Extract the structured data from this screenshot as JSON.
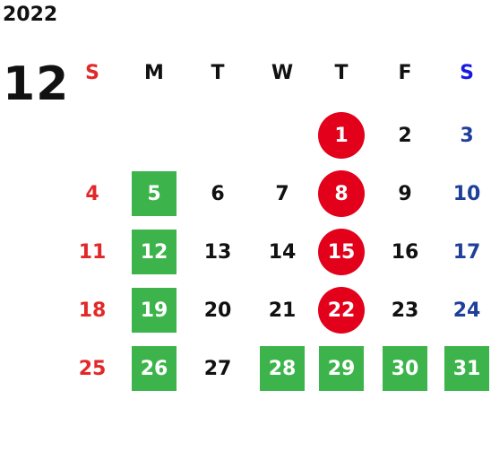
{
  "year": "2022",
  "month": "12",
  "weekdays": [
    "S",
    "M",
    "T",
    "W",
    "T",
    "F",
    "S"
  ],
  "colors": {
    "sunday": "#e22828",
    "saturday": "#1e3f9a",
    "saturday_header": "#1a1ae0",
    "green_mark": "#3cb44b",
    "red_mark": "#e3001b"
  },
  "days": [
    {
      "d": "1",
      "dow": 4,
      "week": 0,
      "mark": "red"
    },
    {
      "d": "2",
      "dow": 5,
      "week": 0,
      "mark": ""
    },
    {
      "d": "3",
      "dow": 6,
      "week": 0,
      "mark": ""
    },
    {
      "d": "4",
      "dow": 0,
      "week": 1,
      "mark": ""
    },
    {
      "d": "5",
      "dow": 1,
      "week": 1,
      "mark": "green"
    },
    {
      "d": "6",
      "dow": 2,
      "week": 1,
      "mark": ""
    },
    {
      "d": "7",
      "dow": 3,
      "week": 1,
      "mark": ""
    },
    {
      "d": "8",
      "dow": 4,
      "week": 1,
      "mark": "red"
    },
    {
      "d": "9",
      "dow": 5,
      "week": 1,
      "mark": ""
    },
    {
      "d": "10",
      "dow": 6,
      "week": 1,
      "mark": ""
    },
    {
      "d": "11",
      "dow": 0,
      "week": 2,
      "mark": ""
    },
    {
      "d": "12",
      "dow": 1,
      "week": 2,
      "mark": "green"
    },
    {
      "d": "13",
      "dow": 2,
      "week": 2,
      "mark": ""
    },
    {
      "d": "14",
      "dow": 3,
      "week": 2,
      "mark": ""
    },
    {
      "d": "15",
      "dow": 4,
      "week": 2,
      "mark": "red"
    },
    {
      "d": "16",
      "dow": 5,
      "week": 2,
      "mark": ""
    },
    {
      "d": "17",
      "dow": 6,
      "week": 2,
      "mark": ""
    },
    {
      "d": "18",
      "dow": 0,
      "week": 3,
      "mark": ""
    },
    {
      "d": "19",
      "dow": 1,
      "week": 3,
      "mark": "green"
    },
    {
      "d": "20",
      "dow": 2,
      "week": 3,
      "mark": ""
    },
    {
      "d": "21",
      "dow": 3,
      "week": 3,
      "mark": ""
    },
    {
      "d": "22",
      "dow": 4,
      "week": 3,
      "mark": "red"
    },
    {
      "d": "23",
      "dow": 5,
      "week": 3,
      "mark": ""
    },
    {
      "d": "24",
      "dow": 6,
      "week": 3,
      "mark": ""
    },
    {
      "d": "25",
      "dow": 0,
      "week": 4,
      "mark": ""
    },
    {
      "d": "26",
      "dow": 1,
      "week": 4,
      "mark": "green"
    },
    {
      "d": "27",
      "dow": 2,
      "week": 4,
      "mark": ""
    },
    {
      "d": "28",
      "dow": 3,
      "week": 4,
      "mark": "green"
    },
    {
      "d": "29",
      "dow": 4,
      "week": 4,
      "mark": "green"
    },
    {
      "d": "30",
      "dow": 5,
      "week": 4,
      "mark": "green"
    },
    {
      "d": "31",
      "dow": 6,
      "week": 4,
      "mark": "green"
    }
  ]
}
